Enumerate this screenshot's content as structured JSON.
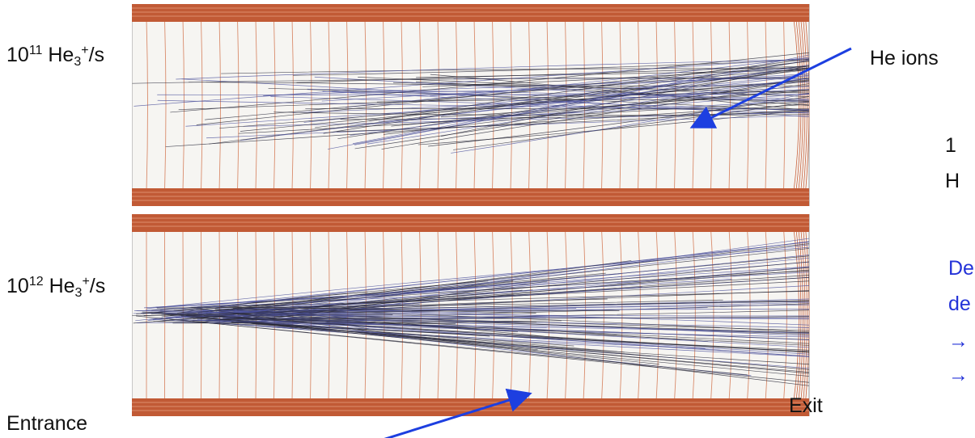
{
  "labels": {
    "top_rate": {
      "base": "10",
      "exp": "11",
      "ion": "He",
      "sub": "3",
      "sup": "+",
      "unit": "/s"
    },
    "bottom_rate": {
      "base": "10",
      "exp": "12",
      "ion": "He",
      "sub": "3",
      "sup": "+",
      "unit": "/s"
    },
    "he_ions": "He ions",
    "exit": "Exit",
    "entrance": "Entrance"
  },
  "side_text": {
    "black": [
      "1",
      "H"
    ],
    "blue": [
      "De",
      "de",
      "→",
      "→"
    ]
  }
}
